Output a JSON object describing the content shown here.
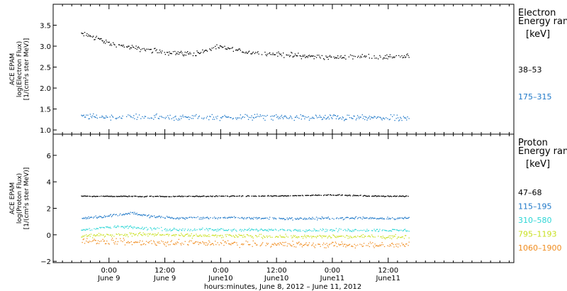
{
  "chart_data": [
    {
      "type": "scatter",
      "panel": "electron",
      "ylabel_lines": [
        "ACE EPAM",
        "log(Electron Flux)",
        "[1/(cm²s ster MeV)]"
      ],
      "ylim": [
        0.9,
        4.0
      ],
      "yticks": [
        1.0,
        1.5,
        2.0,
        2.5,
        3.0,
        3.5
      ],
      "ytick_labels": [
        "1.0",
        "1.5",
        "2.0",
        "2.5",
        "3.0",
        "3.5"
      ],
      "legend": {
        "title_lines": [
          "Electron",
          "Energy ran"
        ],
        "unit": "[keV]",
        "placement": "right"
      },
      "series": [
        {
          "name": "38–53",
          "color": "#000000",
          "noise": 0.05,
          "points": [
            [
              -6,
              3.3
            ],
            [
              -3,
              3.22
            ],
            [
              0,
              3.07
            ],
            [
              6,
              2.95
            ],
            [
              12,
              2.87
            ],
            [
              18,
              2.82
            ],
            [
              24,
              2.99
            ],
            [
              30,
              2.86
            ],
            [
              36,
              2.82
            ],
            [
              42,
              2.77
            ],
            [
              48,
              2.74
            ],
            [
              54,
              2.76
            ],
            [
              60,
              2.75
            ],
            [
              64,
              2.78
            ]
          ]
        },
        {
          "name": "175–315",
          "color": "#1f78c8",
          "noise": 0.06,
          "points": [
            [
              -6,
              1.33
            ],
            [
              6,
              1.31
            ],
            [
              18,
              1.3
            ],
            [
              30,
              1.32
            ],
            [
              42,
              1.31
            ],
            [
              54,
              1.3
            ],
            [
              64,
              1.28
            ]
          ]
        }
      ]
    },
    {
      "type": "scatter",
      "panel": "proton",
      "ylabel_lines": [
        "ACE EPAM",
        "log(Proton Flux)",
        "[1/(cm²s ster MeV)]"
      ],
      "ylim": [
        -2.1,
        7.6
      ],
      "yticks": [
        -2,
        0,
        2,
        4,
        6
      ],
      "ytick_labels": [
        "−2",
        "0",
        "2",
        "4",
        "6"
      ],
      "legend": {
        "title_lines": [
          "Proton",
          "Energy ran"
        ],
        "unit": "[keV]",
        "placement": "right"
      },
      "series": [
        {
          "name": "47–68",
          "color": "#000000",
          "noise": 0.03,
          "points": [
            [
              -6,
              2.95
            ],
            [
              12,
              2.93
            ],
            [
              36,
              2.96
            ],
            [
              48,
              3.05
            ],
            [
              56,
              2.96
            ],
            [
              64,
              2.94
            ]
          ]
        },
        {
          "name": "115–195",
          "color": "#1f78c8",
          "noise": 0.08,
          "points": [
            [
              -6,
              1.3
            ],
            [
              -2,
              1.4
            ],
            [
              2,
              1.55
            ],
            [
              5,
              1.7
            ],
            [
              8,
              1.45
            ],
            [
              14,
              1.3
            ],
            [
              24,
              1.32
            ],
            [
              40,
              1.25
            ],
            [
              52,
              1.3
            ],
            [
              64,
              1.28
            ]
          ]
        },
        {
          "name": "310–580",
          "color": "#2ed6d6",
          "noise": 0.09,
          "points": [
            [
              -6,
              0.4
            ],
            [
              2,
              0.65
            ],
            [
              6,
              0.55
            ],
            [
              14,
              0.42
            ],
            [
              30,
              0.4
            ],
            [
              50,
              0.38
            ],
            [
              64,
              0.36
            ]
          ]
        },
        {
          "name": "795–1193",
          "color": "#c8e020",
          "noise": 0.12,
          "points": [
            [
              -6,
              -0.05
            ],
            [
              6,
              0.08
            ],
            [
              20,
              -0.05
            ],
            [
              40,
              -0.1
            ],
            [
              64,
              -0.12
            ]
          ]
        },
        {
          "name": "1060–1900",
          "color": "#f08c1e",
          "noise": 0.2,
          "points": [
            [
              -6,
              -0.4
            ],
            [
              6,
              -0.55
            ],
            [
              20,
              -0.6
            ],
            [
              40,
              -0.7
            ],
            [
              64,
              -0.75
            ]
          ]
        }
      ]
    }
  ],
  "time_axis": {
    "xlim": [
      -12,
      87
    ],
    "tick_hours": [
      0,
      12,
      24,
      36,
      48,
      60
    ],
    "tick_labels_top": [
      "0:00",
      "12:00",
      "0:00",
      "12:00",
      "0:00",
      "12:00"
    ],
    "tick_labels_bottom": [
      "June 9",
      "June 9",
      "June10",
      "June10",
      "June11",
      "June11"
    ],
    "data_end_hour": 64.5,
    "caption": "hours:minutes, June  8, 2012 – June 11, 2012"
  }
}
